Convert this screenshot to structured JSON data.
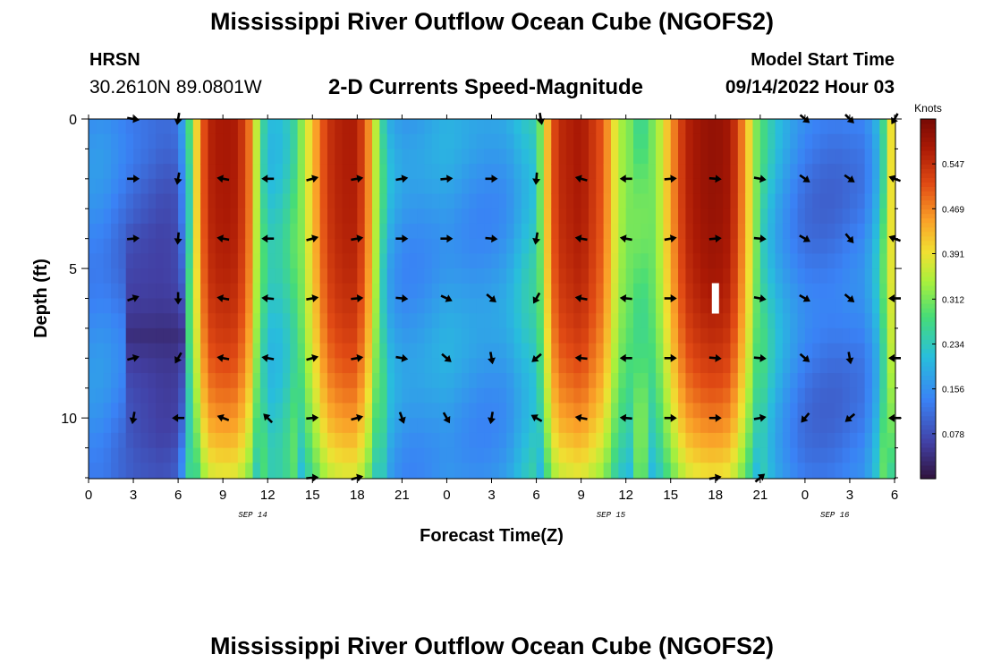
{
  "header": {
    "main_title": "Mississippi River Outflow Ocean Cube (NGOFS2)",
    "station_name": "HRSN",
    "station_coords": "30.2610N  89.0801W",
    "subtitle": "2-D Currents Speed-Magnitude",
    "model_start_label": "Model Start Time",
    "model_start_time": "09/14/2022 Hour 03"
  },
  "footer": {
    "repeated_title": "Mississippi River Outflow Ocean Cube (NGOFS2)"
  },
  "chart_data": {
    "type": "heatmap",
    "title": "2-D Currents Speed-Magnitude",
    "xlabel": "Forecast Time(Z)",
    "ylabel": "Depth (ft)",
    "x_range_hours": [
      0,
      54
    ],
    "y_range": [
      0,
      12
    ],
    "y_inverted": true,
    "x_ticks": [
      {
        "h": 0,
        "label": "0"
      },
      {
        "h": 3,
        "label": "3"
      },
      {
        "h": 6,
        "label": "6"
      },
      {
        "h": 9,
        "label": "9"
      },
      {
        "h": 12,
        "label": "12"
      },
      {
        "h": 15,
        "label": "15"
      },
      {
        "h": 18,
        "label": "18"
      },
      {
        "h": 21,
        "label": "21"
      },
      {
        "h": 24,
        "label": "0"
      },
      {
        "h": 27,
        "label": "3"
      },
      {
        "h": 30,
        "label": "6"
      },
      {
        "h": 33,
        "label": "9"
      },
      {
        "h": 36,
        "label": "12"
      },
      {
        "h": 39,
        "label": "15"
      },
      {
        "h": 42,
        "label": "18"
      },
      {
        "h": 45,
        "label": "21"
      },
      {
        "h": 48,
        "label": "0"
      },
      {
        "h": 51,
        "label": "3"
      },
      {
        "h": 54,
        "label": "6"
      }
    ],
    "y_ticks": [
      {
        "v": 0,
        "label": "0"
      },
      {
        "v": 5,
        "label": "5"
      },
      {
        "v": 10,
        "label": "10"
      }
    ],
    "date_labels": [
      {
        "h": 11,
        "label": "SEP 14"
      },
      {
        "h": 35,
        "label": "SEP 15"
      },
      {
        "h": 50,
        "label": "SEP 16"
      }
    ],
    "colorbar": {
      "title": "Knots",
      "range": [
        0,
        0.625
      ],
      "ticks": [
        0.547,
        0.469,
        0.391,
        0.312,
        0.234,
        0.156,
        0.078
      ],
      "tick_labels": [
        "0.547",
        "0.469",
        "0.391",
        "0.312",
        "0.234",
        "0.156",
        "0.078"
      ]
    },
    "speed_profile_by_hour": [
      [
        0,
        0.15
      ],
      [
        1,
        0.15
      ],
      [
        2,
        0.13
      ],
      [
        3,
        0.11
      ],
      [
        4,
        0.1
      ],
      [
        5,
        0.09
      ],
      [
        6,
        0.1
      ],
      [
        6.6,
        0.22
      ],
      [
        7.4,
        0.45
      ],
      [
        8,
        0.56
      ],
      [
        9,
        0.58
      ],
      [
        10,
        0.57
      ],
      [
        10.8,
        0.48
      ],
      [
        11.4,
        0.32
      ],
      [
        12,
        0.22
      ],
      [
        13,
        0.23
      ],
      [
        14,
        0.29
      ],
      [
        15,
        0.42
      ],
      [
        16,
        0.54
      ],
      [
        17,
        0.57
      ],
      [
        18,
        0.57
      ],
      [
        18.8,
        0.46
      ],
      [
        19.4,
        0.32
      ],
      [
        20,
        0.2
      ],
      [
        21,
        0.16
      ],
      [
        22,
        0.16
      ],
      [
        23,
        0.17
      ],
      [
        24,
        0.18
      ],
      [
        25,
        0.17
      ],
      [
        26,
        0.16
      ],
      [
        27,
        0.16
      ],
      [
        28,
        0.17
      ],
      [
        29,
        0.21
      ],
      [
        30,
        0.24
      ],
      [
        30.6,
        0.4
      ],
      [
        31.4,
        0.55
      ],
      [
        33,
        0.58
      ],
      [
        34.5,
        0.5
      ],
      [
        35.5,
        0.35
      ],
      [
        37,
        0.28
      ],
      [
        38,
        0.32
      ],
      [
        39,
        0.45
      ],
      [
        40,
        0.56
      ],
      [
        41,
        0.59
      ],
      [
        42,
        0.6
      ],
      [
        43,
        0.58
      ],
      [
        44,
        0.45
      ],
      [
        45,
        0.27
      ],
      [
        46,
        0.2
      ],
      [
        47,
        0.16
      ],
      [
        48,
        0.13
      ],
      [
        49,
        0.12
      ],
      [
        50,
        0.12
      ],
      [
        51,
        0.13
      ],
      [
        52,
        0.14
      ],
      [
        53,
        0.22
      ],
      [
        54,
        0.45
      ]
    ],
    "low_speed_patch": {
      "hours": [
        2.5,
        6.5
      ],
      "depth_ft": [
        5.5,
        9
      ],
      "speed": 0.02
    },
    "station_marker": {
      "h": 42,
      "depth_ft": 6
    },
    "arrows": [
      {
        "h": 3,
        "d": 0,
        "a": 10
      },
      {
        "h": 6,
        "d": 0,
        "a": 100
      },
      {
        "h": 30.3,
        "d": 0,
        "a": 80
      },
      {
        "h": 48,
        "d": 0,
        "a": 40
      },
      {
        "h": 51,
        "d": 0,
        "a": 45
      },
      {
        "h": 54,
        "d": 0,
        "a": 120
      },
      {
        "h": 3,
        "d": 2,
        "a": 0
      },
      {
        "h": 6,
        "d": 2,
        "a": 100
      },
      {
        "h": 9,
        "d": 2,
        "a": 190
      },
      {
        "h": 12,
        "d": 2,
        "a": 180
      },
      {
        "h": 15,
        "d": 2,
        "a": -15
      },
      {
        "h": 18,
        "d": 2,
        "a": -10
      },
      {
        "h": 21,
        "d": 2,
        "a": -10
      },
      {
        "h": 24,
        "d": 2,
        "a": -5
      },
      {
        "h": 27,
        "d": 2,
        "a": 0
      },
      {
        "h": 30,
        "d": 2,
        "a": 95
      },
      {
        "h": 33,
        "d": 2,
        "a": 195
      },
      {
        "h": 36,
        "d": 2,
        "a": 180
      },
      {
        "h": 39,
        "d": 2,
        "a": -5
      },
      {
        "h": 42,
        "d": 2,
        "a": 5
      },
      {
        "h": 45,
        "d": 2,
        "a": 10
      },
      {
        "h": 48,
        "d": 2,
        "a": 35
      },
      {
        "h": 51,
        "d": 2,
        "a": 35
      },
      {
        "h": 54,
        "d": 2,
        "a": 200
      },
      {
        "h": 3,
        "d": 4,
        "a": -5
      },
      {
        "h": 6,
        "d": 4,
        "a": 95
      },
      {
        "h": 9,
        "d": 4,
        "a": 190
      },
      {
        "h": 12,
        "d": 4,
        "a": 180
      },
      {
        "h": 15,
        "d": 4,
        "a": -15
      },
      {
        "h": 18,
        "d": 4,
        "a": -10
      },
      {
        "h": 21,
        "d": 4,
        "a": 0
      },
      {
        "h": 24,
        "d": 4,
        "a": 0
      },
      {
        "h": 27,
        "d": 4,
        "a": 5
      },
      {
        "h": 30,
        "d": 4,
        "a": 100
      },
      {
        "h": 33,
        "d": 4,
        "a": 190
      },
      {
        "h": 36,
        "d": 4,
        "a": 190
      },
      {
        "h": 39,
        "d": 4,
        "a": -10
      },
      {
        "h": 42,
        "d": 4,
        "a": -5
      },
      {
        "h": 45,
        "d": 4,
        "a": 5
      },
      {
        "h": 48,
        "d": 4,
        "a": 30
      },
      {
        "h": 51,
        "d": 4,
        "a": 50
      },
      {
        "h": 54,
        "d": 4,
        "a": 200
      },
      {
        "h": 3,
        "d": 6,
        "a": -20
      },
      {
        "h": 6,
        "d": 6,
        "a": 90
      },
      {
        "h": 9,
        "d": 6,
        "a": 190
      },
      {
        "h": 12,
        "d": 6,
        "a": 185
      },
      {
        "h": 15,
        "d": 6,
        "a": -10
      },
      {
        "h": 18,
        "d": 6,
        "a": -5
      },
      {
        "h": 21,
        "d": 6,
        "a": 5
      },
      {
        "h": 24,
        "d": 6,
        "a": 25
      },
      {
        "h": 27,
        "d": 6,
        "a": 40
      },
      {
        "h": 30,
        "d": 6,
        "a": 120
      },
      {
        "h": 33,
        "d": 6,
        "a": 190
      },
      {
        "h": 36,
        "d": 6,
        "a": 185
      },
      {
        "h": 39,
        "d": 6,
        "a": 0
      },
      {
        "h": 45,
        "d": 6,
        "a": 10
      },
      {
        "h": 48,
        "d": 6,
        "a": 30
      },
      {
        "h": 51,
        "d": 6,
        "a": 40
      },
      {
        "h": 54,
        "d": 6,
        "a": 180
      },
      {
        "h": 3,
        "d": 8,
        "a": -15
      },
      {
        "h": 6,
        "d": 8,
        "a": 120
      },
      {
        "h": 9,
        "d": 8,
        "a": 190
      },
      {
        "h": 12,
        "d": 8,
        "a": 190
      },
      {
        "h": 15,
        "d": 8,
        "a": -15
      },
      {
        "h": 18,
        "d": 8,
        "a": -10
      },
      {
        "h": 21,
        "d": 8,
        "a": 10
      },
      {
        "h": 24,
        "d": 8,
        "a": 40
      },
      {
        "h": 27,
        "d": 8,
        "a": 80
      },
      {
        "h": 30,
        "d": 8,
        "a": 140
      },
      {
        "h": 33,
        "d": 8,
        "a": 185
      },
      {
        "h": 36,
        "d": 8,
        "a": 180
      },
      {
        "h": 39,
        "d": 8,
        "a": 0
      },
      {
        "h": 42,
        "d": 8,
        "a": 5
      },
      {
        "h": 45,
        "d": 8,
        "a": 5
      },
      {
        "h": 48,
        "d": 8,
        "a": 40
      },
      {
        "h": 51,
        "d": 8,
        "a": 80
      },
      {
        "h": 54,
        "d": 8,
        "a": 180
      },
      {
        "h": 3,
        "d": 10,
        "a": 100
      },
      {
        "h": 6,
        "d": 10,
        "a": 180
      },
      {
        "h": 9,
        "d": 10,
        "a": 200
      },
      {
        "h": 12,
        "d": 10,
        "a": 225
      },
      {
        "h": 15,
        "d": 10,
        "a": -5
      },
      {
        "h": 18,
        "d": 10,
        "a": -15
      },
      {
        "h": 21,
        "d": 10,
        "a": 70
      },
      {
        "h": 24,
        "d": 10,
        "a": 60
      },
      {
        "h": 27,
        "d": 10,
        "a": 100
      },
      {
        "h": 30,
        "d": 10,
        "a": 210
      },
      {
        "h": 33,
        "d": 10,
        "a": 190
      },
      {
        "h": 36,
        "d": 10,
        "a": 185
      },
      {
        "h": 39,
        "d": 10,
        "a": 0
      },
      {
        "h": 42,
        "d": 10,
        "a": 0
      },
      {
        "h": 45,
        "d": 10,
        "a": -10
      },
      {
        "h": 48,
        "d": 10,
        "a": 130
      },
      {
        "h": 51,
        "d": 10,
        "a": 140
      },
      {
        "h": 54,
        "d": 10,
        "a": 180
      },
      {
        "h": 15,
        "d": 12,
        "a": -5
      },
      {
        "h": 18,
        "d": 12,
        "a": -15
      },
      {
        "h": 42,
        "d": 12,
        "a": -10
      },
      {
        "h": 45,
        "d": 12,
        "a": -40
      }
    ]
  }
}
